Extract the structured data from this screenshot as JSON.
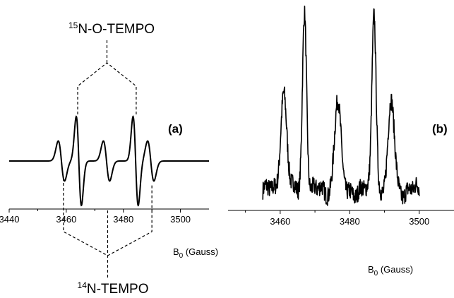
{
  "chart_data": [
    {
      "type": "line",
      "panel_label": "(a)",
      "xlabel_main": "B",
      "xlabel_sub": "0",
      "xlabel_rest": " (Gauss)",
      "xlim": [
        3440,
        3510
      ],
      "xticks": [
        3440,
        3460,
        3480,
        3500
      ],
      "grid": false,
      "top_annotation": {
        "sup": "15",
        "text": "N-O-TEMPO",
        "peak_positions": [
          3464,
          3484.5
        ]
      },
      "bottom_annotation": {
        "sup": "14",
        "text": "N-TEMPO",
        "peak_positions": [
          3459,
          3490
        ]
      },
      "series": [
        {
          "kind": "derivative-spectrum",
          "center": 3474.5,
          "baseline": 0,
          "lines": [
            {
              "position": 3458.3,
              "amplitude": 0.45,
              "width": 1.1
            },
            {
              "position": 3464.4,
              "amplitude": 1.0,
              "width": 0.9
            },
            {
              "position": 3474.1,
              "amplitude": 0.45,
              "width": 1.1
            },
            {
              "position": 3484.3,
              "amplitude": 1.0,
              "width": 0.9
            },
            {
              "position": 3489.6,
              "amplitude": 0.45,
              "width": 1.1
            }
          ]
        }
      ]
    },
    {
      "type": "line",
      "panel_label": "(b)",
      "xlabel_main": "B",
      "xlabel_sub": "0",
      "xlabel_rest": " (Gauss)",
      "xlim": [
        3445,
        3510
      ],
      "xticks": [
        3460,
        3480,
        3500
      ],
      "data_range": [
        3455,
        3500
      ],
      "grid": false,
      "series": [
        {
          "kind": "absorption-spectrum",
          "baseline": 0,
          "noise": 0.05,
          "peaks": [
            {
              "position": 3461,
              "height": 0.55,
              "width": 0.9
            },
            {
              "position": 3467,
              "height": 1.0,
              "width": 0.6
            },
            {
              "position": 3476.5,
              "height": 0.5,
              "width": 0.9
            },
            {
              "position": 3487,
              "height": 1.0,
              "width": 0.6
            },
            {
              "position": 3492,
              "height": 0.48,
              "width": 0.9
            }
          ]
        }
      ]
    }
  ]
}
